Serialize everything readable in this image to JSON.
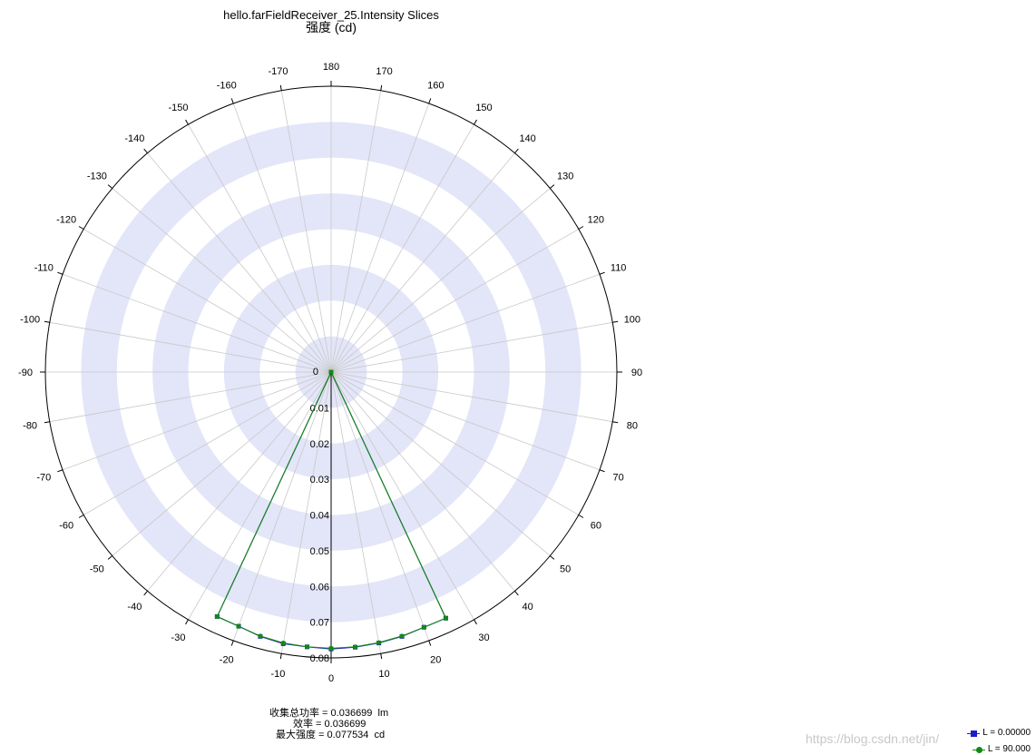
{
  "chart_data": {
    "type": "polar",
    "title": "hello.farFieldReceiver_25.Intensity Slices",
    "subtitle": "强度 (cd)",
    "angle_ticks": [
      {
        "angle": 0,
        "label": "0"
      },
      {
        "angle": 10,
        "label": "10"
      },
      {
        "angle": 20,
        "label": "20"
      },
      {
        "angle": 30,
        "label": "30"
      },
      {
        "angle": 40,
        "label": "40"
      },
      {
        "angle": 50,
        "label": "50"
      },
      {
        "angle": 60,
        "label": "60"
      },
      {
        "angle": 70,
        "label": "70"
      },
      {
        "angle": 80,
        "label": "80"
      },
      {
        "angle": 90,
        "label": "90"
      },
      {
        "angle": 100,
        "label": "100"
      },
      {
        "angle": 110,
        "label": "110"
      },
      {
        "angle": 120,
        "label": "120"
      },
      {
        "angle": 130,
        "label": "130"
      },
      {
        "angle": 140,
        "label": "140"
      },
      {
        "angle": 150,
        "label": "150"
      },
      {
        "angle": 160,
        "label": "160"
      },
      {
        "angle": 170,
        "label": "170"
      },
      {
        "angle": 180,
        "label": "180"
      },
      {
        "angle": -10,
        "label": "-10"
      },
      {
        "angle": -20,
        "label": "-20"
      },
      {
        "angle": -30,
        "label": "-30"
      },
      {
        "angle": -40,
        "label": "-40"
      },
      {
        "angle": -50,
        "label": "-50"
      },
      {
        "angle": -60,
        "label": "-60"
      },
      {
        "angle": -70,
        "label": "-70"
      },
      {
        "angle": -80,
        "label": "-80"
      },
      {
        "angle": -90,
        "label": "-90"
      },
      {
        "angle": -100,
        "label": "-100"
      },
      {
        "angle": -110,
        "label": "-110"
      },
      {
        "angle": -120,
        "label": "-120"
      },
      {
        "angle": -130,
        "label": "-130"
      },
      {
        "angle": -140,
        "label": "-140"
      },
      {
        "angle": -150,
        "label": "-150"
      },
      {
        "angle": -160,
        "label": "-160"
      },
      {
        "angle": -170,
        "label": "-170"
      }
    ],
    "radial_ticks": [
      {
        "value": 0,
        "label": "0"
      },
      {
        "value": 0.01,
        "label": "0.01"
      },
      {
        "value": 0.02,
        "label": "0.02"
      },
      {
        "value": 0.03,
        "label": "0.03"
      },
      {
        "value": 0.04,
        "label": "0.04"
      },
      {
        "value": 0.05,
        "label": "0.05"
      },
      {
        "value": 0.06,
        "label": "0.06"
      },
      {
        "value": 0.07,
        "label": "0.07"
      },
      {
        "value": 0.08,
        "label": "0.08"
      }
    ],
    "rlim": [
      0,
      0.08
    ],
    "shaded_bands": [
      [
        0,
        0.01
      ],
      [
        0.02,
        0.03
      ],
      [
        0.04,
        0.05
      ],
      [
        0.06,
        0.07
      ]
    ],
    "series": [
      {
        "name": "L = 0.00000",
        "color": "#1c1ccc",
        "marker": "square",
        "points": [
          {
            "angle": -25,
            "r": 0.0755
          },
          {
            "angle": -20,
            "r": 0.0757
          },
          {
            "angle": -15,
            "r": 0.0766
          },
          {
            "angle": -10,
            "r": 0.0772
          },
          {
            "angle": -5,
            "r": 0.0772
          },
          {
            "angle": 0,
            "r": 0.0775
          },
          {
            "angle": 5,
            "r": 0.0773
          },
          {
            "angle": 10,
            "r": 0.077
          },
          {
            "angle": 15,
            "r": 0.0766
          },
          {
            "angle": 20,
            "r": 0.076
          },
          {
            "angle": 25,
            "r": 0.076
          }
        ]
      },
      {
        "name": "L = 90.000",
        "color": "#128a12",
        "marker": "circle",
        "points": [
          {
            "angle": -25,
            "r": 0.0755
          },
          {
            "angle": -20,
            "r": 0.0757
          },
          {
            "angle": -15,
            "r": 0.0765
          },
          {
            "angle": -10,
            "r": 0.077
          },
          {
            "angle": -5,
            "r": 0.0772
          },
          {
            "angle": 0,
            "r": 0.0773
          },
          {
            "angle": 5,
            "r": 0.0772
          },
          {
            "angle": 10,
            "r": 0.0769
          },
          {
            "angle": 15,
            "r": 0.0765
          },
          {
            "angle": 20,
            "r": 0.076
          },
          {
            "angle": 25,
            "r": 0.076
          }
        ]
      }
    ],
    "center_point": {
      "angle": 0,
      "r": 0
    },
    "colors": {
      "band": "#e3e5f8",
      "grid": "#c8c8c8",
      "axis": "#000000"
    }
  },
  "stats": {
    "line1": "收集总功率 = 0.036699  lm",
    "line2": "效率 = 0.036699",
    "line3": "最大强度 = 0.077534  cd"
  },
  "legend": [
    {
      "label": "L = 0.00000",
      "color": "#1c1ccc",
      "marker": "square"
    },
    {
      "label": "L = 90.000",
      "color": "#128a12",
      "marker": "circle"
    }
  ],
  "watermark": "https://blog.csdn.net/jin/"
}
